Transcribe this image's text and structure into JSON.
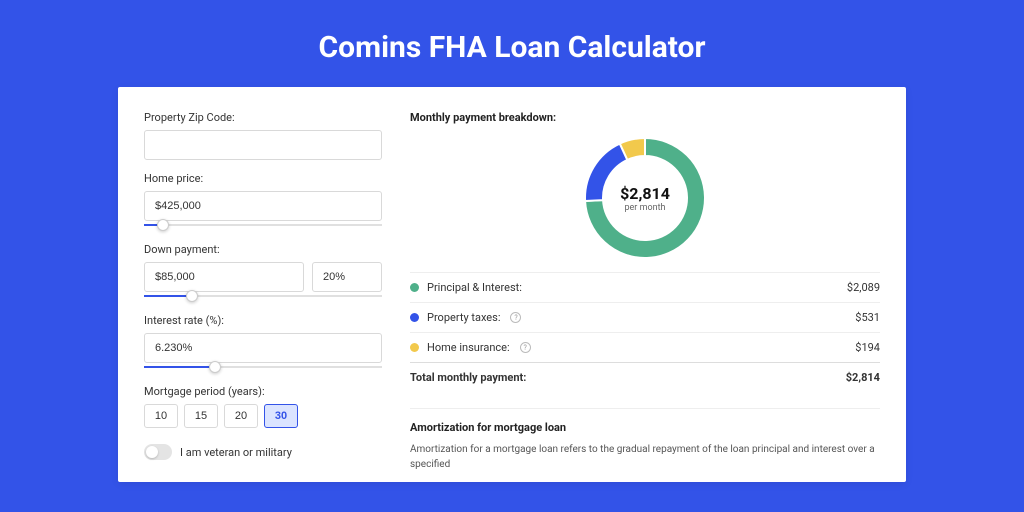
{
  "page": {
    "title": "Comins FHA Loan Calculator",
    "background_color": "#3353e8",
    "card_background": "#ffffff"
  },
  "form": {
    "zip": {
      "label": "Property Zip Code:",
      "value": ""
    },
    "home_price": {
      "label": "Home price:",
      "value": "$425,000",
      "slider_pct": 8
    },
    "down_payment": {
      "label": "Down payment:",
      "value": "$85,000",
      "pct_value": "20%",
      "slider_pct": 20
    },
    "interest": {
      "label": "Interest rate (%):",
      "value": "6.230%",
      "slider_pct": 30
    },
    "period": {
      "label": "Mortgage period (years):",
      "options": [
        "10",
        "15",
        "20",
        "30"
      ],
      "selected": "30"
    },
    "veteran": {
      "label": "I am veteran or military",
      "checked": false
    }
  },
  "breakdown": {
    "title": "Monthly payment breakdown:",
    "center_amount": "$2,814",
    "center_sub": "per month",
    "donut": {
      "segments": [
        {
          "label": "Principal & Interest",
          "color": "#4fb08a",
          "pct": 74.2
        },
        {
          "label": "Property taxes",
          "color": "#3353e8",
          "pct": 18.9
        },
        {
          "label": "Home insurance",
          "color": "#f2c94c",
          "pct": 6.9
        }
      ],
      "thickness": 18,
      "radius": 60,
      "background": "#ffffff"
    },
    "rows": [
      {
        "label": "Principal & Interest:",
        "color": "#4fb08a",
        "value": "$2,089",
        "info": false
      },
      {
        "label": "Property taxes:",
        "color": "#3353e8",
        "value": "$531",
        "info": true
      },
      {
        "label": "Home insurance:",
        "color": "#f2c94c",
        "value": "$194",
        "info": true
      }
    ],
    "total": {
      "label": "Total monthly payment:",
      "value": "$2,814"
    }
  },
  "amortization": {
    "title": "Amortization for mortgage loan",
    "text": "Amortization for a mortgage loan refers to the gradual repayment of the loan principal and interest over a specified"
  }
}
